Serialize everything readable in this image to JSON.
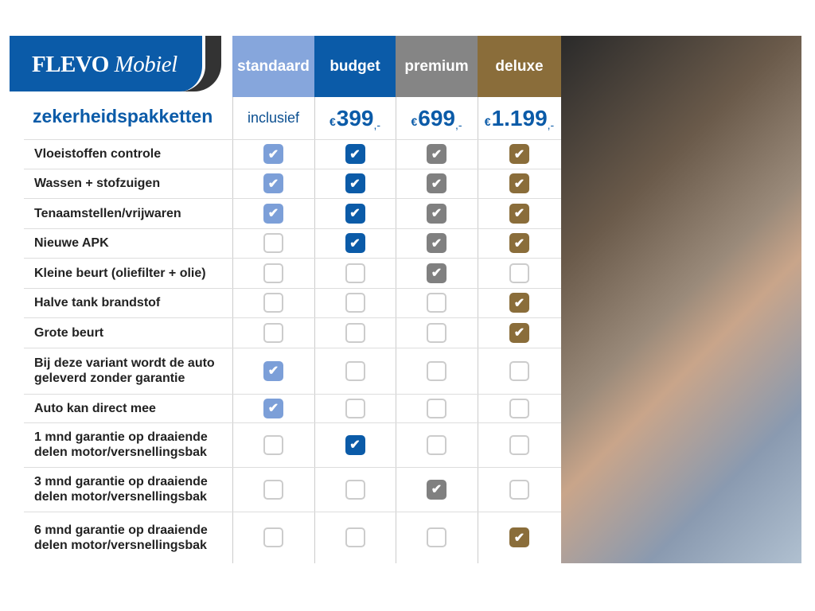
{
  "brand": {
    "name_bold": "FLEVO",
    "name_italic": "Mobiel"
  },
  "title": "zekerheidspakketten",
  "packages": [
    {
      "name": "standaard",
      "price": "inclusief",
      "color": "#86a6dc",
      "check_color": "#7c9fd8"
    },
    {
      "name": "budget",
      "currency": "€",
      "price": "399",
      "suffix": ",-",
      "color": "#0b5ba8",
      "check_color": "#0b5ba8"
    },
    {
      "name": "premium",
      "currency": "€",
      "price": "699",
      "suffix": ",-",
      "color": "#858585",
      "check_color": "#808080"
    },
    {
      "name": "deluxe",
      "currency": "€",
      "price": "1.199",
      "suffix": ",-",
      "color": "#8a6d3a",
      "check_color": "#8a6d3a"
    }
  ],
  "features": [
    {
      "label": "Vloeistoffen controle",
      "checks": [
        true,
        true,
        true,
        true
      ]
    },
    {
      "label": "Wassen + stofzuigen",
      "checks": [
        true,
        true,
        true,
        true
      ]
    },
    {
      "label": "Tenaamstellen/vrijwaren",
      "checks": [
        true,
        true,
        true,
        true
      ]
    },
    {
      "label": "Nieuwe APK",
      "checks": [
        false,
        true,
        true,
        true
      ]
    },
    {
      "label": "Kleine beurt (oliefilter + olie)",
      "checks": [
        false,
        false,
        true,
        false
      ]
    },
    {
      "label": "Halve tank brandstof",
      "checks": [
        false,
        false,
        false,
        true
      ]
    },
    {
      "label": "Grote beurt",
      "checks": [
        false,
        false,
        false,
        true
      ]
    },
    {
      "label": "Bij deze variant wordt de auto geleverd zonder garantie",
      "checks": [
        true,
        false,
        false,
        false
      ]
    },
    {
      "label": "Auto kan direct mee",
      "checks": [
        true,
        false,
        false,
        false
      ]
    },
    {
      "label": "1 mnd garantie op draaiende delen motor/versnellingsbak",
      "checks": [
        false,
        true,
        false,
        false
      ]
    },
    {
      "label": "3 mnd garantie op draaiende delen motor/versnellingsbak",
      "checks": [
        false,
        false,
        true,
        false
      ]
    },
    {
      "label": "6 mnd garantie op draaiende delen motor/versnellingsbak",
      "checks": [
        false,
        false,
        false,
        true
      ]
    }
  ],
  "check_glyph": "check-icon"
}
